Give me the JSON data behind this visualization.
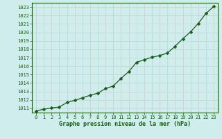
{
  "x": [
    0,
    1,
    2,
    3,
    4,
    5,
    6,
    7,
    8,
    9,
    10,
    11,
    12,
    13,
    14,
    15,
    16,
    17,
    18,
    19,
    20,
    21,
    22,
    23
  ],
  "y": [
    1010.7,
    1010.9,
    1011.05,
    1011.15,
    1011.7,
    1011.95,
    1012.25,
    1012.55,
    1012.8,
    1013.35,
    1013.65,
    1014.55,
    1015.35,
    1016.45,
    1016.75,
    1017.05,
    1017.25,
    1017.55,
    1018.35,
    1019.25,
    1020.05,
    1021.05,
    1022.25,
    1023.05
  ],
  "line_color": "#1a5c1a",
  "marker_color": "#1a5c1a",
  "bg_color": "#d0eded",
  "grid_color": "#c8d8d8",
  "axis_label_color": "#1a5c1a",
  "tick_color": "#1a5c1a",
  "xlabel": "Graphe pression niveau de la mer (hPa)",
  "ylim_min": 1010.5,
  "ylim_max": 1023.5,
  "yticks": [
    1011,
    1012,
    1013,
    1014,
    1015,
    1016,
    1017,
    1018,
    1019,
    1020,
    1021,
    1022,
    1023
  ],
  "xticks": [
    0,
    1,
    2,
    3,
    4,
    5,
    6,
    7,
    8,
    9,
    10,
    11,
    12,
    13,
    14,
    15,
    16,
    17,
    18,
    19,
    20,
    21,
    22,
    23
  ],
  "tick_fontsize": 5.0,
  "xlabel_fontsize": 6.0
}
